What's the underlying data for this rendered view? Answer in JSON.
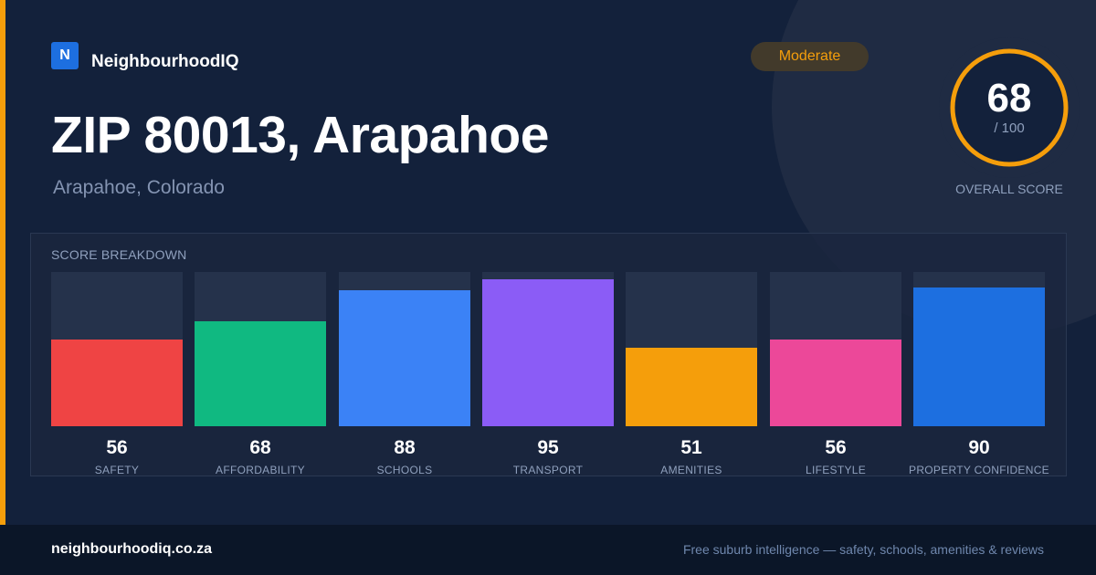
{
  "brand": {
    "logo_letter": "N",
    "name": "NeighbourhoodIQ",
    "accent_color": "#f59e0b",
    "logo_color": "#1d6fe0"
  },
  "header": {
    "title": "ZIP 80013, Arapahoe",
    "subtitle": "Arapahoe, Colorado"
  },
  "badge": {
    "label": "Moderate"
  },
  "overall": {
    "score": "68",
    "max": "/ 100",
    "caption": "OVERALL SCORE",
    "value": 68,
    "ring_color": "#f59e0b"
  },
  "breakdown": {
    "title": "SCORE BREAKDOWN"
  },
  "chart_data": {
    "type": "bar",
    "title": "SCORE BREAKDOWN",
    "categories": [
      "SAFETY",
      "AFFORDABILITY",
      "SCHOOLS",
      "TRANSPORT",
      "AMENITIES",
      "LIFESTYLE",
      "PROPERTY CONFIDENCE"
    ],
    "values": [
      56,
      68,
      88,
      95,
      51,
      56,
      90
    ],
    "colors": [
      "#ef4444",
      "#10b981",
      "#3b82f6",
      "#8b5cf6",
      "#f59e0b",
      "#ec4899",
      "#1d6fe0"
    ],
    "ylim": [
      0,
      100
    ]
  },
  "footer": {
    "domain": "neighbourhoodiq.co.za",
    "tagline": "Free suburb intelligence — safety, schools, amenities & reviews"
  }
}
